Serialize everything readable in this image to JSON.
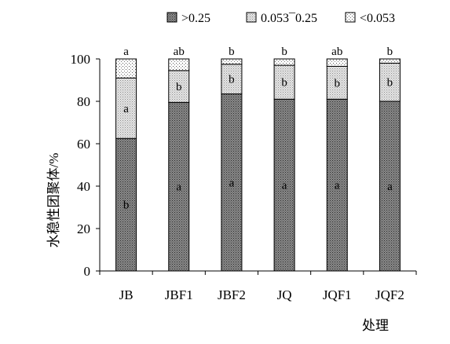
{
  "chart_data": {
    "type": "bar",
    "stacked": true,
    "title": "",
    "xlabel": "处理",
    "ylabel": "水稳性团聚体/%",
    "ylim": [
      0,
      100
    ],
    "yticks": [
      "0",
      "20",
      "40",
      "60",
      "80",
      "100"
    ],
    "categories": [
      "JB",
      "JBF1",
      "JBF2",
      "JQ",
      "JQF1",
      "JQF2"
    ],
    "legend_position": "top",
    "series": [
      {
        "name": ">0.25",
        "pattern": "dark-dots",
        "color": "#808080",
        "values": [
          62.5,
          79.5,
          83.5,
          81,
          81,
          80
        ],
        "letters": [
          "b",
          "a",
          "a",
          "a",
          "a",
          "a"
        ]
      },
      {
        "name": "0.053¯0.25",
        "pattern": "light-dots",
        "color": "#d0d0d0",
        "values": [
          28.5,
          15,
          14,
          16,
          15.5,
          18
        ],
        "letters": [
          "a",
          "b",
          "b",
          "b",
          "b",
          "b"
        ]
      },
      {
        "name": "<0.053",
        "pattern": "sparse-dots",
        "color": "#ffffff",
        "values": [
          9,
          5.5,
          2.5,
          3,
          3.5,
          2
        ],
        "letters": [
          "a",
          "ab",
          "b",
          "b",
          "ab",
          "b"
        ]
      }
    ]
  }
}
